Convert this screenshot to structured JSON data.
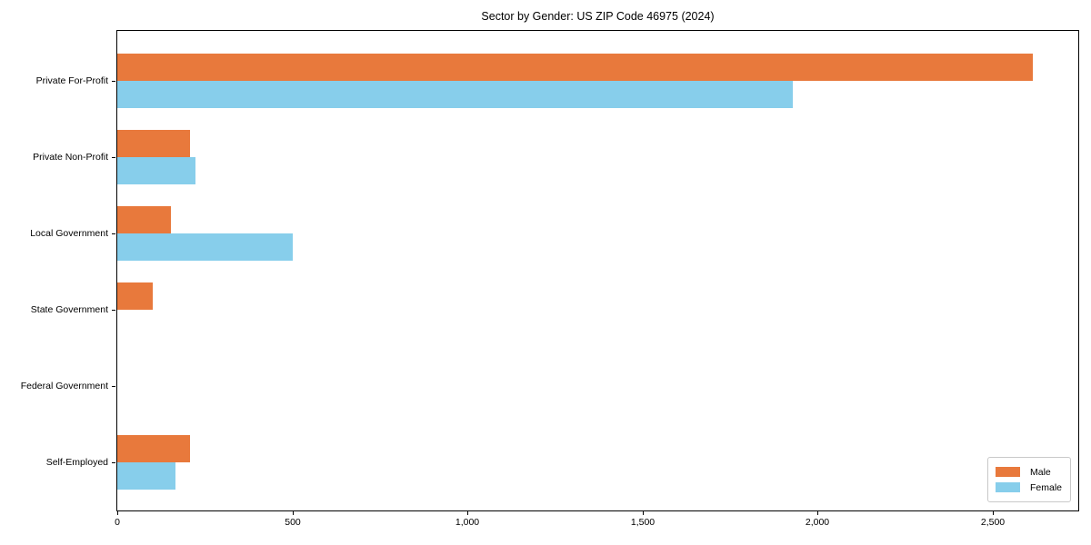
{
  "chart_data": {
    "type": "bar",
    "orientation": "horizontal",
    "title": "Sector by Gender: US ZIP Code 46975 (2024)",
    "categories": [
      "Private For-Profit",
      "Private Non-Profit",
      "Local Government",
      "State Government",
      "Federal Government",
      "Self-Employed"
    ],
    "series": [
      {
        "name": "Male",
        "color": "#e8793c",
        "values": [
          2615,
          207,
          153,
          101,
          0,
          207
        ]
      },
      {
        "name": "Female",
        "color": "#87ceeb",
        "values": [
          1930,
          223,
          500,
          0,
          0,
          166
        ]
      }
    ],
    "xlabel": "",
    "ylabel": "",
    "xlim": [
      0,
      2744
    ],
    "x_ticks": [
      0,
      500,
      1000,
      1500,
      2000,
      2500
    ],
    "x_tick_labels": [
      "0",
      "500",
      "1,000",
      "1,500",
      "2,000",
      "2,500"
    ],
    "grid": false,
    "legend_position": "lower right",
    "frame": "full-box",
    "background_color": "#ffffff",
    "spine_color": "#000000"
  }
}
